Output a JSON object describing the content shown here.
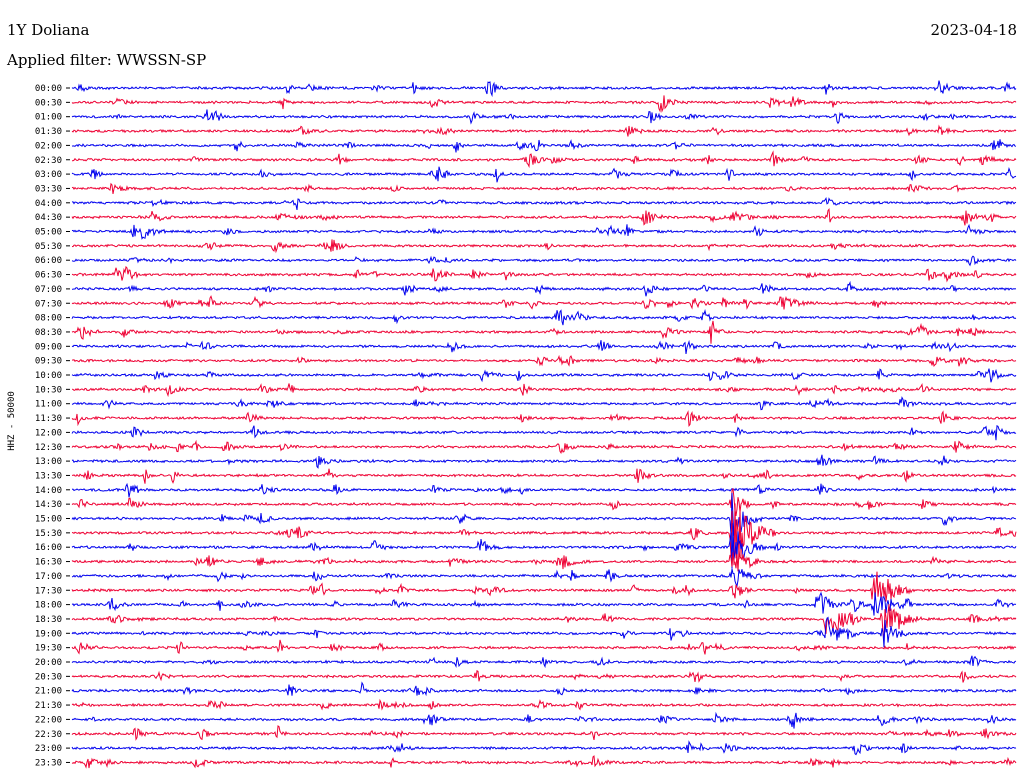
{
  "header": {
    "station": "1Y Doliana",
    "date": "2023-04-18",
    "filter": "Applied filter: WWSSN-SP"
  },
  "chart_data": {
    "type": "line",
    "title": "1Y Doliana",
    "ylabel": "HHZ - 50000",
    "row_labels": [
      "00:00",
      "00:30",
      "01:00",
      "01:30",
      "02:00",
      "02:30",
      "03:00",
      "03:30",
      "04:00",
      "04:30",
      "05:00",
      "05:30",
      "06:00",
      "06:30",
      "07:00",
      "07:30",
      "08:00",
      "08:30",
      "09:00",
      "09:30",
      "10:00",
      "10:30",
      "11:00",
      "11:30",
      "12:00",
      "12:30",
      "13:00",
      "13:30",
      "14:00",
      "14:30",
      "15:00",
      "15:30",
      "16:00",
      "16:30",
      "17:00",
      "17:30",
      "18:00",
      "18:30",
      "19:00",
      "19:30",
      "20:00",
      "20:30",
      "21:00",
      "21:30",
      "22:00",
      "22:30",
      "23:00",
      "23:30"
    ],
    "colors": [
      "#0000ee",
      "#ee0033"
    ],
    "grid": false
  }
}
